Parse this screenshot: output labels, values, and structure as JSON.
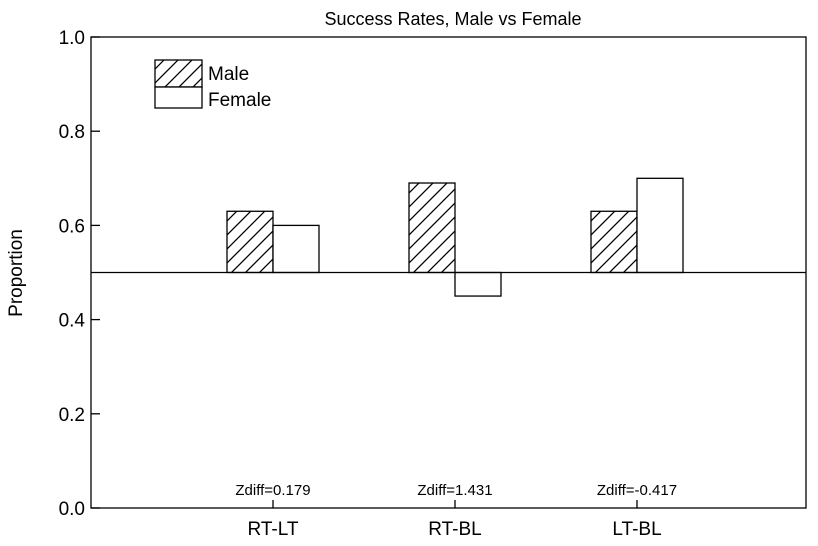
{
  "chart_data": {
    "type": "bar",
    "title": "Success Rates, Male vs Female",
    "xlabel": "",
    "ylabel": "Proportion",
    "ylim": [
      0.0,
      1.0
    ],
    "yticks": [
      "0.0",
      "0.2",
      "0.4",
      "0.6",
      "0.8",
      "1.0"
    ],
    "baseline": 0.5,
    "categories": [
      "RT-LT",
      "RT-BL",
      "LT-BL"
    ],
    "series": [
      {
        "name": "Male",
        "values": [
          0.63,
          0.69,
          0.63
        ],
        "pattern": "hatched"
      },
      {
        "name": "Female",
        "values": [
          0.6,
          0.45,
          0.7
        ],
        "pattern": "open"
      }
    ],
    "annotations": [
      "Zdiff=0.179",
      "Zdiff=1.431",
      "Zdiff=-0.417"
    ],
    "legend_position": "top-left",
    "grid": false
  }
}
